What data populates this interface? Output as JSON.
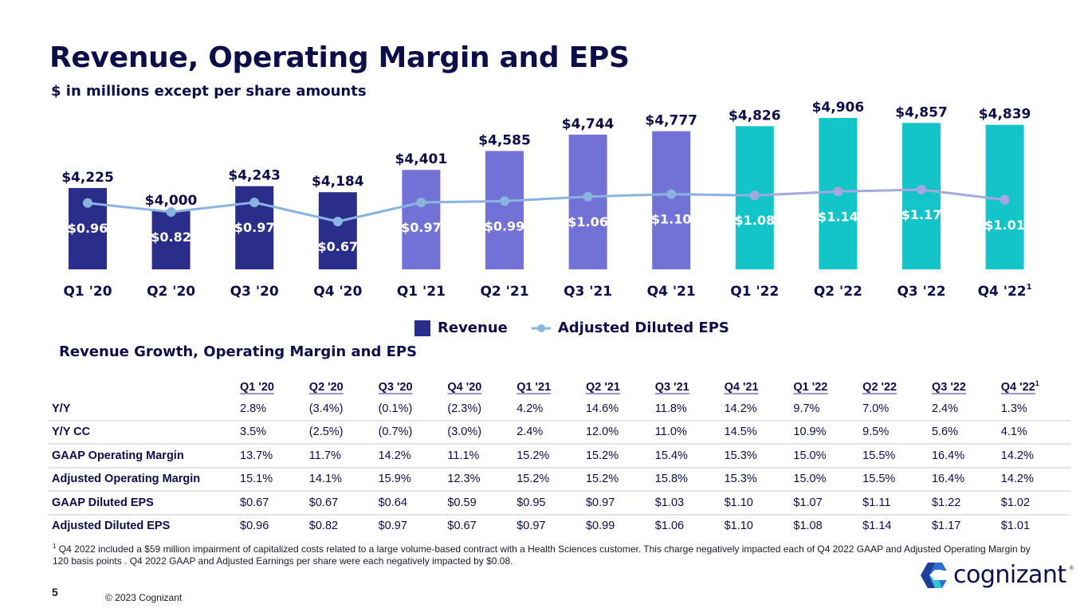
{
  "header": {
    "title": "Revenue, Operating Margin and EPS",
    "subtitle": "$ in millions except per share amounts"
  },
  "colors": {
    "title_navy": "#0d0d4a",
    "bar_2020": "#2b2d8b",
    "bar_2021": "#7272d6",
    "bar_2022": "#14c5c8",
    "eps_line": "#8ab4e0",
    "eps_line_2022": "#a3a8e0"
  },
  "chart_data": {
    "type": "bar",
    "title": "Revenue, Operating Margin and EPS",
    "subtitle": "$ in millions except per share amounts",
    "categories": [
      "Q1 '20",
      "Q2 '20",
      "Q3 '20",
      "Q4 '20",
      "Q1 '21",
      "Q2 '21",
      "Q3 '21",
      "Q4 '21",
      "Q1 '22",
      "Q2 '22",
      "Q3 '22",
      "Q4 '22"
    ],
    "category_footnote_marks": [
      "",
      "",
      "",
      "",
      "",
      "",
      "",
      "",
      "",
      "",
      "",
      "1"
    ],
    "series": [
      {
        "name": "Revenue",
        "type": "bar",
        "values": [
          4225,
          4000,
          4243,
          4184,
          4401,
          4585,
          4744,
          4777,
          4826,
          4906,
          4857,
          4839
        ],
        "labels": [
          "$4,225",
          "$4,000",
          "$4,243",
          "$4,184",
          "$4,401",
          "$4,585",
          "$4,744",
          "$4,777",
          "$4,826",
          "$4,906",
          "$4,857",
          "$4,839"
        ],
        "year_groups": [
          "2020",
          "2020",
          "2020",
          "2020",
          "2021",
          "2021",
          "2021",
          "2021",
          "2022",
          "2022",
          "2022",
          "2022"
        ]
      },
      {
        "name": "Adjusted Diluted EPS",
        "type": "line",
        "values": [
          0.96,
          0.82,
          0.97,
          0.67,
          0.97,
          0.99,
          1.06,
          1.1,
          1.08,
          1.14,
          1.17,
          1.01
        ],
        "labels": [
          "$0.96",
          "$0.82",
          "$0.97",
          "$0.67",
          "$0.97",
          "$0.99",
          "$1.06",
          "$1.10",
          "$1.08",
          "$1.14",
          "$1.17",
          "$1.01"
        ]
      }
    ],
    "xlabel": "",
    "ylabel": "",
    "revenue_axis_range": [
      3500,
      5000
    ],
    "eps_axis_range": [
      0.0,
      2.0
    ],
    "grid": false,
    "legend": {
      "position": "bottom-center",
      "entries": [
        "Revenue",
        "Adjusted Diluted EPS"
      ]
    }
  },
  "table": {
    "title": "Revenue Growth, Operating Margin and EPS",
    "columns": [
      "Q1 '20",
      "Q2 '20",
      "Q3 '20",
      "Q4 '20",
      "Q1 '21",
      "Q2 '21",
      "Q3 '21",
      "Q4 '21",
      "Q1 '22",
      "Q2 '22",
      "Q3 '22",
      "Q4 '22"
    ],
    "column_footnote_marks": [
      "",
      "",
      "",
      "",
      "",
      "",
      "",
      "",
      "",
      "",
      "",
      "1"
    ],
    "rows": [
      {
        "label": "Y/Y",
        "values": [
          "2.8%",
          "(3.4%)",
          "(0.1%)",
          "(2.3%)",
          "4.2%",
          "14.6%",
          "11.8%",
          "14.2%",
          "9.7%",
          "7.0%",
          "2.4%",
          "1.3%"
        ]
      },
      {
        "label": "Y/Y CC",
        "values": [
          "3.5%",
          "(2.5%)",
          "(0.7%)",
          "(3.0%)",
          "2.4%",
          "12.0%",
          "11.0%",
          "14.5%",
          "10.9%",
          "9.5%",
          "5.6%",
          "4.1%"
        ]
      },
      {
        "label": "GAAP Operating Margin",
        "values": [
          "13.7%",
          "11.7%",
          "14.2%",
          "11.1%",
          "15.2%",
          "15.2%",
          "15.4%",
          "15.3%",
          "15.0%",
          "15.5%",
          "16.4%",
          "14.2%"
        ]
      },
      {
        "label": "Adjusted Operating Margin",
        "values": [
          "15.1%",
          "14.1%",
          "15.9%",
          "12.3%",
          "15.2%",
          "15.2%",
          "15.8%",
          "15.3%",
          "15.0%",
          "15.5%",
          "16.4%",
          "14.2%"
        ]
      },
      {
        "label": "GAAP Diluted EPS",
        "values": [
          "$0.67",
          "$0.67",
          "$0.64",
          "$0.59",
          "$0.95",
          "$0.97",
          "$1.03",
          "$1.10",
          "$1.07",
          "$1.11",
          "$1.22",
          "$1.02"
        ]
      },
      {
        "label": "Adjusted Diluted EPS",
        "values": [
          "$0.96",
          "$0.82",
          "$0.97",
          "$0.67",
          "$0.97",
          "$0.99",
          "$1.06",
          "$1.10",
          "$1.08",
          "$1.14",
          "$1.17",
          "$1.01"
        ]
      }
    ]
  },
  "footnote": {
    "mark": "1",
    "text": "Q4 2022 included a $59 million impairment of capitalized costs related to a large volume-based contract with a Health Sciences customer. This charge negatively impacted each of Q4 2022 GAAP and Adjusted Operating Margin by 120 basis points . Q4 2022 GAAP and Adjusted Earnings per share were each negatively impacted by $0.08."
  },
  "footer": {
    "page_number": "5",
    "copyright": "© 2023 Cognizant",
    "logo_text": "cognizant",
    "logo_reg": "®"
  }
}
